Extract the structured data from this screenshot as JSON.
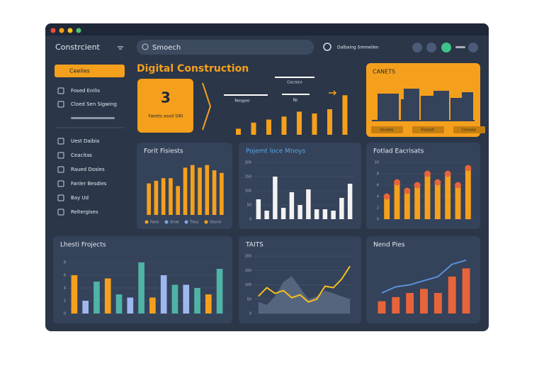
{
  "app": {
    "title": "Constrcient",
    "search": "Smoech",
    "user": "Dalbaing Smmeilen"
  },
  "sidebar": {
    "button": "Ceeiles",
    "items": [
      "Fosed Enilis",
      "Cloed Sen Sigwing",
      "Uest Daibia",
      "Ceacitas",
      "Raued Dosies",
      "Fanler Besdies",
      "Bay Ud",
      "Reltergises"
    ]
  },
  "header": {
    "title": "Digital Construction"
  },
  "kpi": {
    "value": 3,
    "label": "Faeets asod SIRI"
  },
  "summary": {
    "labels": [
      "Cocrsicn",
      "Rengyes",
      "Bp"
    ],
    "values": [
      1,
      2,
      2.5,
      3,
      3.8,
      3.5,
      4.2,
      6.5
    ],
    "ylim": [
      0,
      7
    ],
    "color": "#f5a01c"
  },
  "canets": {
    "title": "CANETS",
    "labels": [
      "Ssuiees",
      "Forcaiti",
      "Cenaais"
    ]
  },
  "panels": [
    {
      "title": "Forit Fisiests",
      "type": "bar",
      "color": "#f5a01c",
      "values": [
        6,
        6.5,
        7,
        7,
        5.5,
        9,
        9.5,
        9,
        9.5,
        8.5,
        8
      ],
      "ylim": [
        0,
        10
      ],
      "legend": [
        "Faesi",
        "Sinat",
        "Tleui",
        "Oosnd"
      ],
      "legend_colors": [
        "#f5a01c",
        "#7fa6e0",
        "#7fa6e0",
        "#f5a01c"
      ]
    },
    {
      "title": "Pojemt loce Mnoys",
      "type": "bar",
      "color": "#f2f2f2",
      "values": [
        70,
        30,
        150,
        40,
        95,
        50,
        105,
        35,
        35,
        30,
        75,
        125
      ],
      "ylim": [
        0,
        200
      ],
      "yticks": [
        0,
        50,
        100,
        150,
        200
      ]
    },
    {
      "title": "Fotlad Eacrisats",
      "type": "capbar",
      "color": "#f5a01c",
      "cap": "#e8643a",
      "values": [
        4,
        6.5,
        5,
        6,
        8,
        6.5,
        8,
        6,
        9
      ],
      "ylim": [
        0,
        10
      ],
      "yticks": [
        0,
        2,
        4,
        6,
        8,
        10
      ]
    },
    {
      "title": "Lhesti Frojects",
      "type": "bar",
      "colors": [
        "#f5a01c",
        "#9fb7f0",
        "#4fb3a6",
        "#f5a01c",
        "#4fb3a6",
        "#9fb7f0",
        "#4fb3a6",
        "#f5a01c",
        "#9fb7f0",
        "#4fb3a6",
        "#9fb7f0",
        "#4fb3a6",
        "#f5a01c",
        "#4fb3a6"
      ],
      "values": [
        6,
        2,
        5,
        5.5,
        3,
        2.5,
        8,
        2.5,
        6,
        4.5,
        4.5,
        4,
        3,
        7
      ],
      "ylim": [
        0,
        9
      ],
      "yticks": [
        0,
        2,
        4,
        6,
        8
      ]
    },
    {
      "title": "TAITS",
      "type": "line",
      "color": "#f5c01c",
      "area_color": "#56657e",
      "values": [
        60,
        90,
        70,
        80,
        55,
        65,
        40,
        50,
        95,
        90,
        120,
        165
      ],
      "area_values": [
        40,
        30,
        60,
        110,
        130,
        90,
        50,
        60,
        80,
        70,
        60,
        50
      ],
      "ylim": [
        0,
        200
      ],
      "yticks": [
        0,
        50,
        100,
        150,
        200
      ]
    },
    {
      "title": "Nend Pies",
      "type": "combo",
      "color": "#e8643a",
      "line_color": "#5b8fd6",
      "values": [
        3,
        4,
        5,
        6,
        5,
        9,
        11
      ],
      "line_values": [
        5,
        6.5,
        7,
        8,
        9,
        12,
        13
      ],
      "ylim": [
        0,
        14
      ]
    }
  ]
}
